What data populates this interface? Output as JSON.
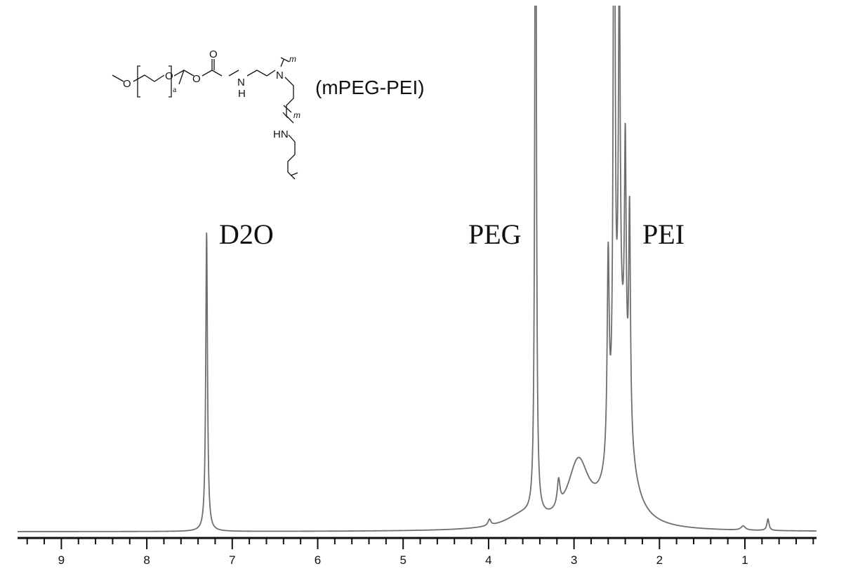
{
  "chart_data": {
    "type": "line",
    "title": "",
    "xlabel": "",
    "ylabel": "",
    "xlim": [
      9.5,
      0.17
    ],
    "x_reversed": true,
    "x_ticks": [
      9,
      8,
      7,
      6,
      5,
      4,
      3,
      2,
      1
    ],
    "x_tick_labels": [
      "9",
      "8",
      "7",
      "6",
      "5",
      "4",
      "3",
      "2",
      "1"
    ],
    "minor_tick_step": 0.2,
    "grid": false,
    "line_color": "#6e6e6e",
    "peaks": [
      {
        "ppm": 7.3,
        "height": 0.57,
        "width": 0.012
      },
      {
        "ppm": 3.99,
        "height": 0.012,
        "width": 0.02
      },
      {
        "ppm": 3.6,
        "height": 0.025,
        "width": 0.25
      },
      {
        "ppm": 3.45,
        "height": 1.6,
        "width": 0.01
      },
      {
        "ppm": 3.18,
        "height": 0.05,
        "width": 0.02
      },
      {
        "ppm": 2.95,
        "height": 0.12,
        "width": 0.15
      },
      {
        "ppm": 2.6,
        "height": 0.38,
        "width": 0.014
      },
      {
        "ppm": 2.53,
        "height": 1.6,
        "width": 0.01
      },
      {
        "ppm": 2.47,
        "height": 0.75,
        "width": 0.012
      },
      {
        "ppm": 2.4,
        "height": 0.45,
        "width": 0.012
      },
      {
        "ppm": 2.35,
        "height": 0.42,
        "width": 0.012
      },
      {
        "ppm": 2.45,
        "height": 0.32,
        "width": 0.11
      },
      {
        "ppm": 1.02,
        "height": 0.008,
        "width": 0.03
      },
      {
        "ppm": 0.73,
        "height": 0.022,
        "width": 0.015
      }
    ],
    "annotations": [
      {
        "text": "D2O",
        "ppm": 7.3
      },
      {
        "text": "PEG",
        "ppm": 3.45
      },
      {
        "text": "PEI",
        "ppm": 2.4
      }
    ]
  },
  "structure": {
    "name": "(mPEG-PEI)",
    "atoms": {
      "o1": "O",
      "o2": "O",
      "o3": "O",
      "o4": "O",
      "n1": "N",
      "h1": "H",
      "n2": "N",
      "hn": "HN",
      "a": "a",
      "m1": "m",
      "m2": "m"
    }
  }
}
